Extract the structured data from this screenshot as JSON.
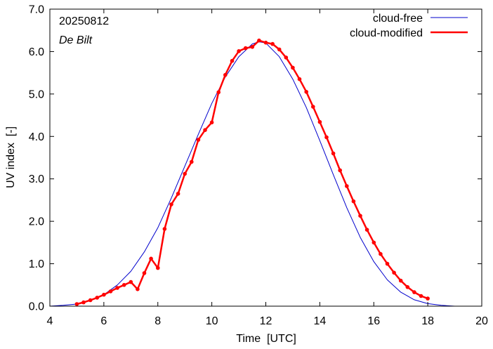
{
  "chart_data": {
    "type": "line",
    "annotations": {
      "date": "20250812",
      "station": "De Bilt"
    },
    "xlabel": "Time  [UTC]",
    "ylabel": "UV index  [-]",
    "xlim": [
      4,
      20
    ],
    "ylim": [
      0,
      7
    ],
    "x_ticks": [
      4,
      6,
      8,
      10,
      12,
      14,
      16,
      18,
      20
    ],
    "x_tick_labels": [
      "4",
      "6",
      "8",
      "10",
      "12",
      "14",
      "16",
      "18",
      "20"
    ],
    "y_ticks": [
      0,
      1,
      2,
      3,
      4,
      5,
      6,
      7
    ],
    "y_tick_labels": [
      "0.0",
      "1.0",
      "2.0",
      "3.0",
      "4.0",
      "5.0",
      "6.0",
      "7.0"
    ],
    "grid": false,
    "legend_position": "top-right",
    "series": [
      {
        "name": "cloud-free",
        "color": "#0000cc",
        "marker": "none",
        "x": [
          4.0,
          4.5,
          5.0,
          5.5,
          6.0,
          6.5,
          7.0,
          7.5,
          8.0,
          8.5,
          9.0,
          9.5,
          10.0,
          10.5,
          11.0,
          11.5,
          11.75,
          12.0,
          12.5,
          13.0,
          13.5,
          14.0,
          14.5,
          15.0,
          15.5,
          16.0,
          16.5,
          17.0,
          17.5,
          18.0,
          18.5,
          19.0,
          19.5
        ],
        "y": [
          0.0,
          0.02,
          0.05,
          0.13,
          0.27,
          0.5,
          0.82,
          1.28,
          1.85,
          2.55,
          3.3,
          4.05,
          4.78,
          5.4,
          5.88,
          6.18,
          6.23,
          6.2,
          5.88,
          5.35,
          4.68,
          3.9,
          3.1,
          2.32,
          1.62,
          1.05,
          0.62,
          0.33,
          0.15,
          0.06,
          0.02,
          0.0,
          0.0
        ]
      },
      {
        "name": "cloud-modified",
        "color": "#ff0000",
        "marker": "circle",
        "x": [
          5.0,
          5.25,
          5.5,
          5.75,
          6.0,
          6.25,
          6.5,
          6.75,
          7.0,
          7.25,
          7.5,
          7.75,
          8.0,
          8.25,
          8.5,
          8.75,
          9.0,
          9.25,
          9.5,
          9.75,
          10.0,
          10.25,
          10.5,
          10.75,
          11.0,
          11.25,
          11.5,
          11.75,
          12.0,
          12.25,
          12.5,
          12.75,
          13.0,
          13.25,
          13.5,
          13.75,
          14.0,
          14.25,
          14.5,
          14.75,
          15.0,
          15.25,
          15.5,
          15.75,
          16.0,
          16.25,
          16.5,
          16.75,
          17.0,
          17.25,
          17.5,
          17.75,
          18.0
        ],
        "y": [
          0.05,
          0.09,
          0.14,
          0.2,
          0.27,
          0.35,
          0.43,
          0.5,
          0.57,
          0.4,
          0.78,
          1.12,
          0.9,
          1.82,
          2.4,
          2.65,
          3.12,
          3.4,
          3.92,
          4.15,
          4.33,
          5.04,
          5.45,
          5.78,
          6.01,
          6.08,
          6.11,
          6.26,
          6.21,
          6.18,
          6.05,
          5.86,
          5.62,
          5.35,
          5.05,
          4.7,
          4.34,
          3.98,
          3.6,
          3.2,
          2.83,
          2.47,
          2.13,
          1.8,
          1.5,
          1.23,
          1.0,
          0.79,
          0.6,
          0.45,
          0.33,
          0.24,
          0.18
        ]
      }
    ]
  }
}
